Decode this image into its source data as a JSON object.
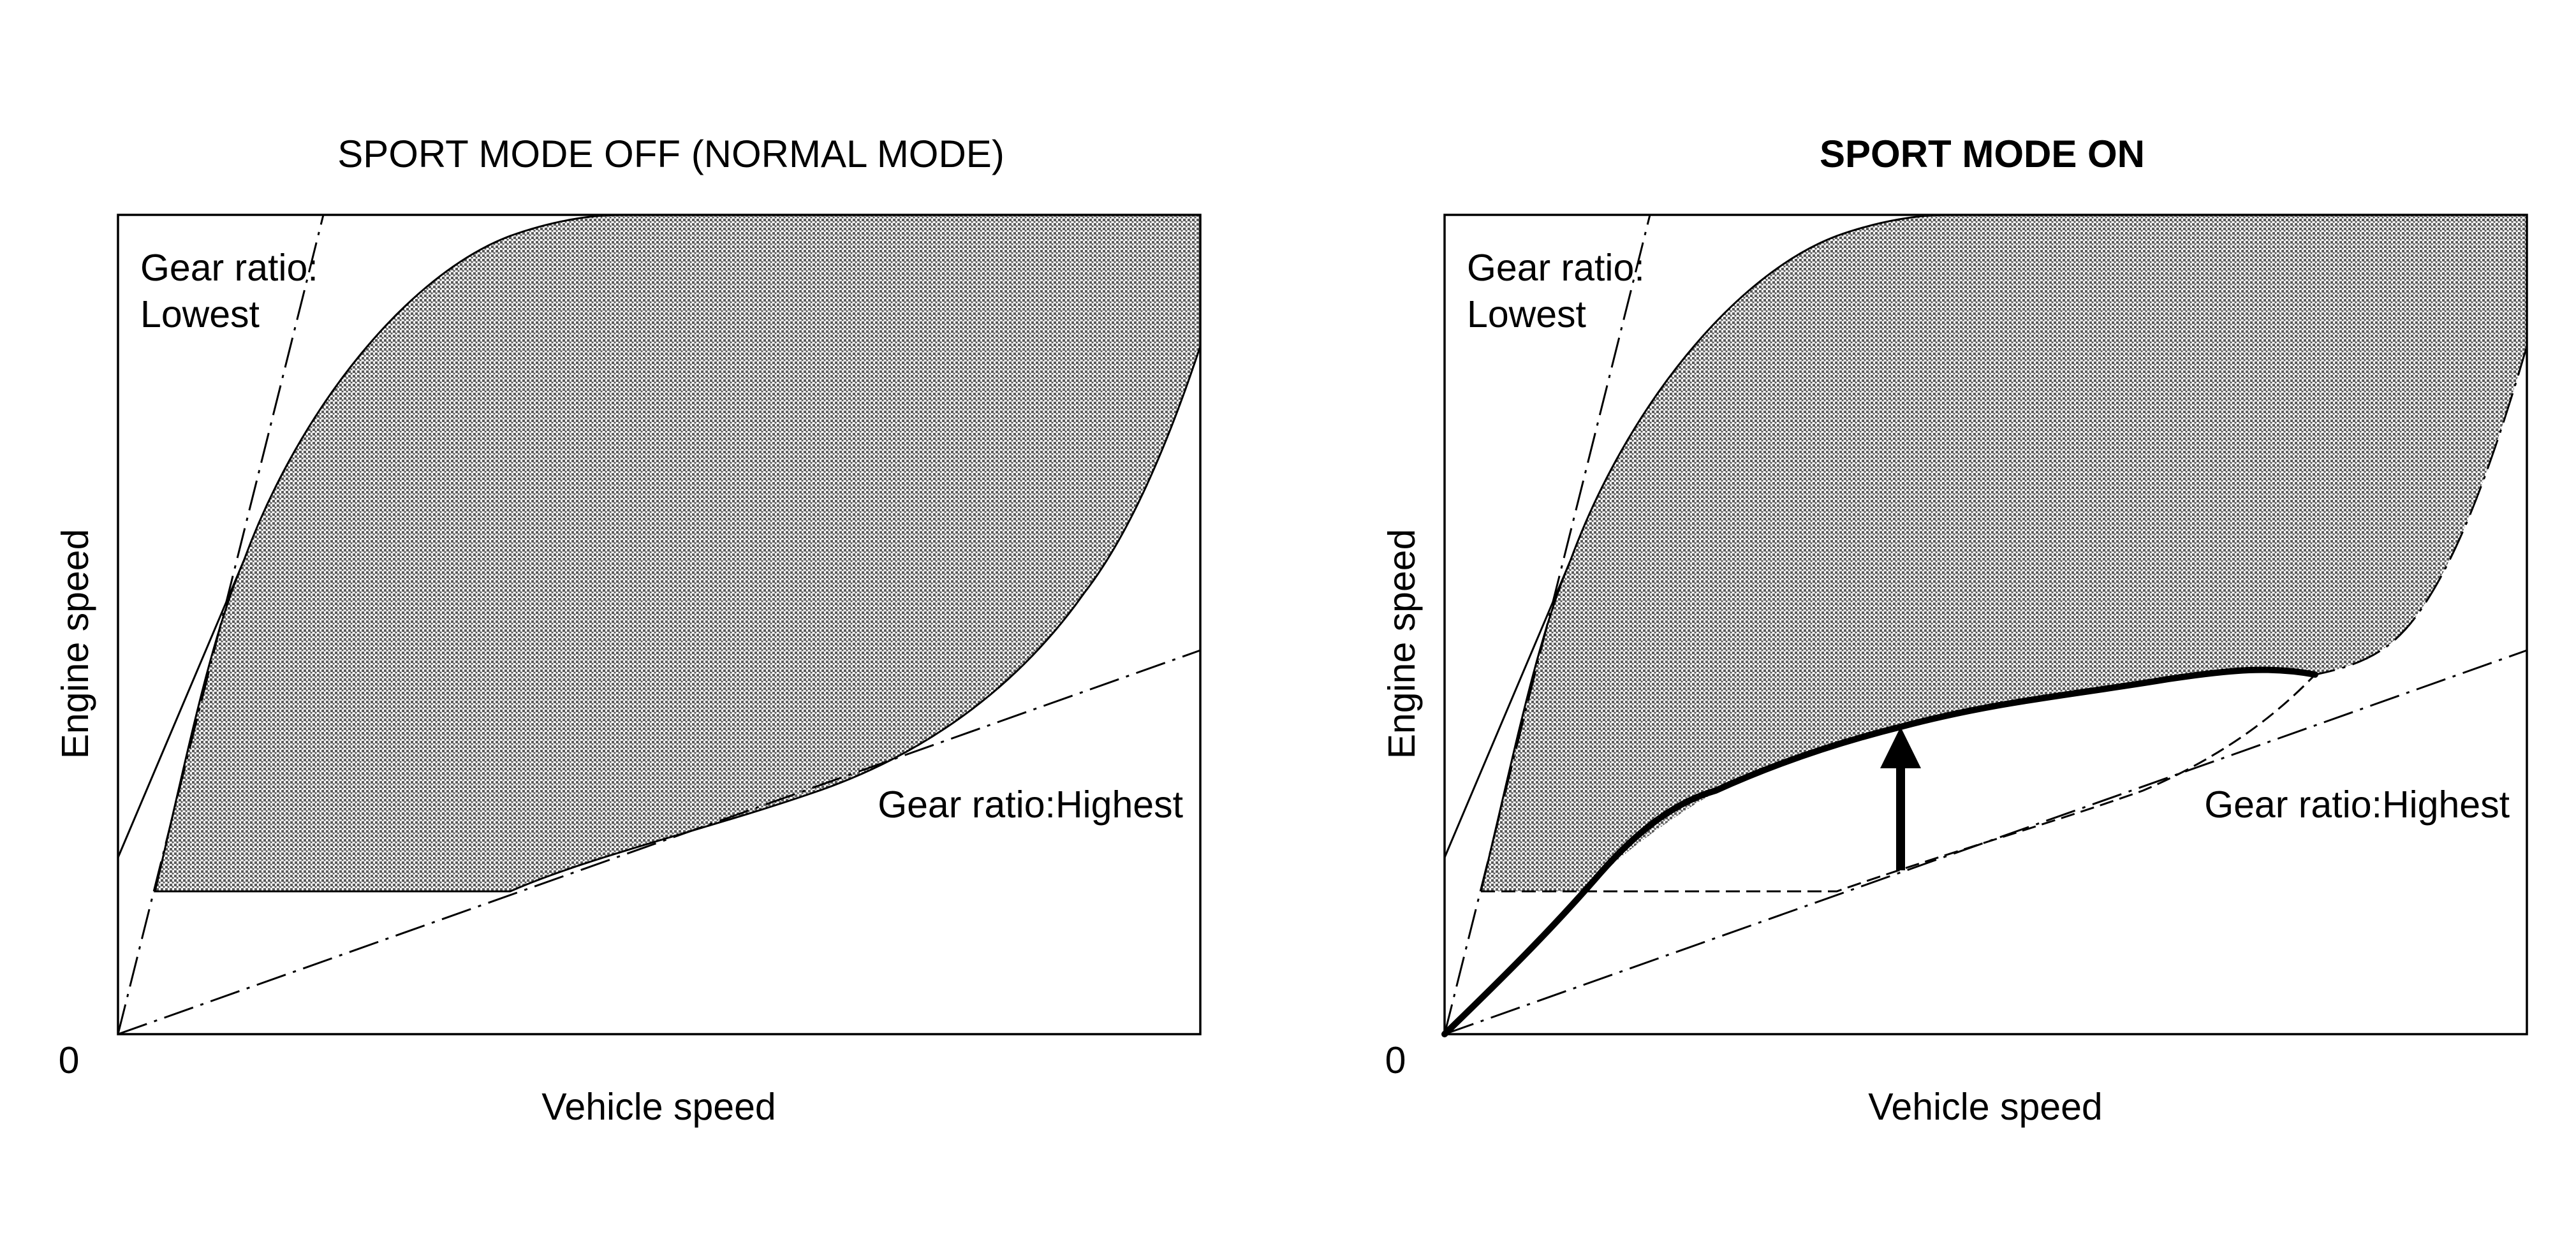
{
  "figure": {
    "panels": [
      {
        "id": "normal",
        "title": "SPORT MODE OFF (NORMAL MODE)",
        "title_bold": false,
        "y_axis_label": "Engine speed",
        "x_axis_label": "Vehicle speed",
        "origin_label": "0",
        "lowest_gear_label_line1": "Gear ratio:",
        "lowest_gear_label_line2": "Lowest",
        "highest_gear_label": "Gear ratio:Highest"
      },
      {
        "id": "sport",
        "title": "SPORT MODE ON",
        "title_bold": true,
        "y_axis_label": "Engine speed",
        "x_axis_label": "Vehicle speed",
        "origin_label": "0",
        "lowest_gear_label_line1": "Gear ratio:",
        "lowest_gear_label_line2": "Lowest",
        "highest_gear_label": "Gear ratio:Highest"
      }
    ],
    "colors": {
      "ink": "#000000",
      "shade": "#9a9a9a",
      "background": "#ffffff"
    }
  }
}
